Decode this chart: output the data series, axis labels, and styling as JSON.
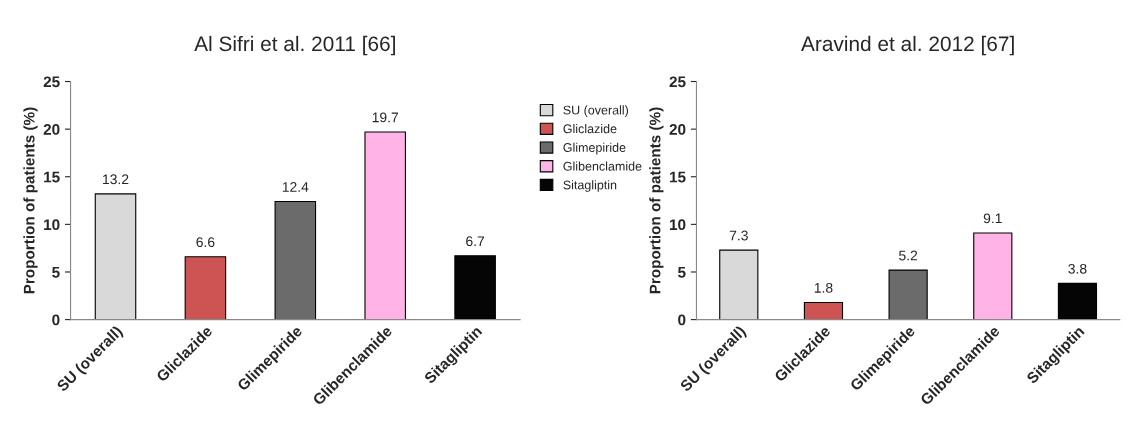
{
  "chart_data": [
    {
      "type": "bar",
      "title": "Al Sifri et al. 2011 [66]",
      "ylabel": "Proportion of patients (%)",
      "categories": [
        "SU (overall)",
        "Gliclazide",
        "Glimepiride",
        "Glibenclamide",
        "Sitagliptin"
      ],
      "series": [
        {
          "name": "SU (overall)",
          "color": "#d9d9d9",
          "values": [
            13.2,
            null,
            null,
            null,
            null
          ]
        },
        {
          "name": "Gliclazide",
          "color": "#cd5452",
          "values": [
            null,
            6.6,
            null,
            null,
            null
          ]
        },
        {
          "name": "Glimepiride",
          "color": "#6b6b6b",
          "values": [
            null,
            null,
            12.4,
            null,
            null
          ]
        },
        {
          "name": "Glibenclamide",
          "color": "#ffb3e6",
          "values": [
            null,
            null,
            null,
            19.7,
            null
          ]
        },
        {
          "name": "Sitagliptin",
          "color": "#050505",
          "values": [
            null,
            null,
            null,
            null,
            6.7
          ]
        }
      ],
      "ylim": [
        0,
        25
      ],
      "yticks": [
        0,
        5,
        10,
        15,
        20,
        25
      ],
      "data_labels": true,
      "legend": "right",
      "grid": false
    },
    {
      "type": "bar",
      "title": "Aravind et al. 2012 [67]",
      "ylabel": "Proportion of patients (%)",
      "categories": [
        "SU (overall)",
        "Gliclazide",
        "Glimepiride",
        "Glibenclamide",
        "Sitagliptin"
      ],
      "values": [
        7.3,
        1.8,
        5.2,
        9.1,
        3.8
      ],
      "colors": [
        "#d9d9d9",
        "#cd5452",
        "#6b6b6b",
        "#ffb3e6",
        "#050505"
      ],
      "ylim": [
        0,
        25
      ],
      "yticks": [
        0,
        5,
        10,
        15,
        20,
        25
      ],
      "data_labels": true,
      "grid": false
    }
  ]
}
